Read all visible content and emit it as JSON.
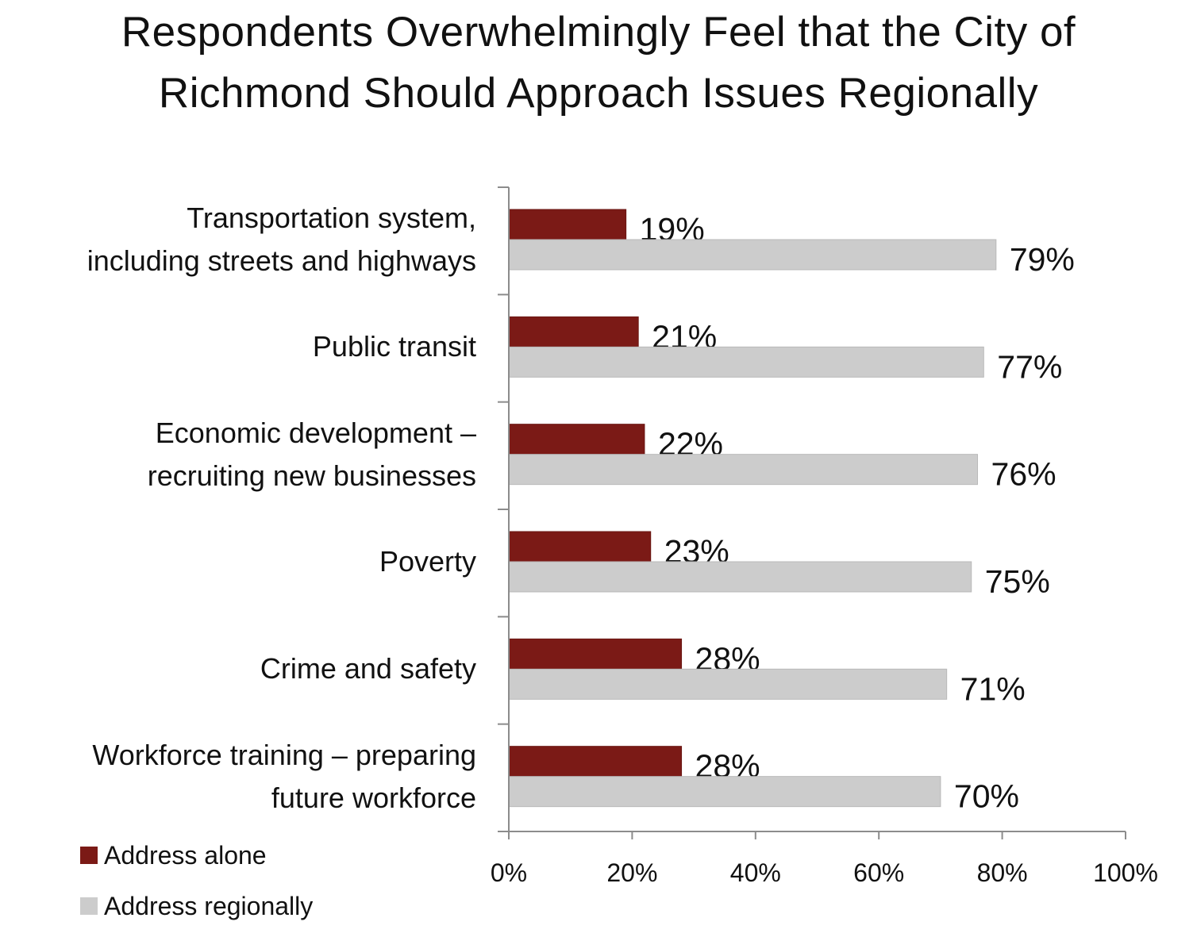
{
  "chart_data": {
    "type": "bar",
    "orientation": "horizontal",
    "title": [
      "Respondents Overwhelmingly Feel that the City of",
      "Richmond Should Approach Issues Regionally"
    ],
    "categories": [
      [
        "Transportation system,",
        "including streets and highways"
      ],
      [
        "Public transit"
      ],
      [
        "Economic development –",
        "recruiting new businesses"
      ],
      [
        "Poverty"
      ],
      [
        "Crime and safety"
      ],
      [
        "Workforce training – preparing",
        "future workforce"
      ]
    ],
    "series": [
      {
        "name": "Address alone",
        "color": "#7b1a16",
        "values": [
          19,
          21,
          22,
          23,
          28,
          28
        ],
        "labels": [
          "19%",
          "21%",
          "22%",
          "23%",
          "28%",
          "28%"
        ]
      },
      {
        "name": "Address regionally",
        "color": "#cccccc",
        "values": [
          79,
          77,
          76,
          75,
          71,
          70
        ],
        "labels": [
          "79%",
          "77%",
          "76%",
          "75%",
          "71%",
          "70%"
        ]
      }
    ],
    "xlim": [
      0,
      100
    ],
    "xticks": [
      "0%",
      "20%",
      "40%",
      "60%",
      "80%",
      "100%"
    ],
    "xlabel": "",
    "ylabel": "",
    "grid": false,
    "legend": "bottom-left"
  }
}
